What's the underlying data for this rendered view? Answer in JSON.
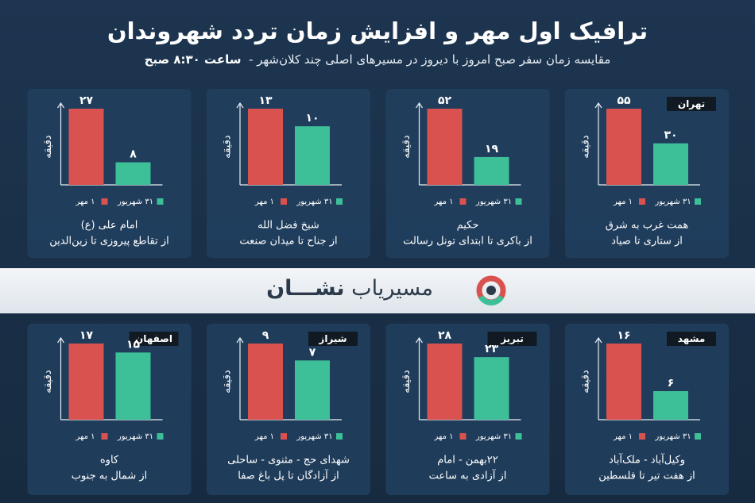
{
  "title": "ترافیک اول مهر و افزایش زمان تردد شهروندان",
  "subtitle": "مقایسه زمان سفر صبح امروز با دیروز در مسیرهای اصلی چند کلان‌شهر",
  "time": "ساعت ۸:۳۰ صبح",
  "brand": {
    "prefix": "مسیریاب",
    "name": "نشـــان"
  },
  "chart_data": [
    {
      "type": "bar",
      "city": "تهران",
      "route": "همت غرب به شرق",
      "route_from": "از ستاری تا صیاد",
      "ylabel": "دقیقه",
      "categories": [
        "۱ مهر",
        "۳۱ شهریور"
      ],
      "values": [
        55,
        30
      ],
      "value_labels": [
        "۵۵",
        "۳۰"
      ],
      "colors": [
        "#d9524f",
        "#3dbf98"
      ],
      "ylim": [
        0,
        55
      ]
    },
    {
      "type": "bar",
      "route": "حکیم",
      "route_from": "از باکری تا ابتدای تونل رسالت",
      "ylabel": "دقیقه",
      "categories": [
        "۱ مهر",
        "۳۱ شهریور"
      ],
      "values": [
        52,
        19
      ],
      "value_labels": [
        "۵۲",
        "۱۹"
      ],
      "colors": [
        "#d9524f",
        "#3dbf98"
      ],
      "ylim": [
        0,
        52
      ]
    },
    {
      "type": "bar",
      "route": "شیخ فضل الله",
      "route_from": "از جناح تا میدان صنعت",
      "ylabel": "دقیقه",
      "categories": [
        "۱ مهر",
        "۳۱ شهریور"
      ],
      "values": [
        13,
        10
      ],
      "value_labels": [
        "۱۳",
        "۱۰"
      ],
      "colors": [
        "#d9524f",
        "#3dbf98"
      ],
      "ylim": [
        0,
        13
      ]
    },
    {
      "type": "bar",
      "route": "امام علی (ع)",
      "route_from": "از تقاطع پیروزی تا زین‌الدین",
      "ylabel": "دقیقه",
      "categories": [
        "۱ مهر",
        "۳۱ شهریور"
      ],
      "values": [
        27,
        8
      ],
      "value_labels": [
        "۲۷",
        "۸"
      ],
      "colors": [
        "#d9524f",
        "#3dbf98"
      ],
      "ylim": [
        0,
        27
      ]
    },
    {
      "type": "bar",
      "city": "مشهد",
      "route": "وکیل‌آباد - ملک‌آباد",
      "route_from": "از هفت تیر تا فلسطین",
      "ylabel": "دقیقه",
      "categories": [
        "۱ مهر",
        "۳۱ شهریور"
      ],
      "values": [
        16,
        6
      ],
      "value_labels": [
        "۱۶",
        "۶"
      ],
      "colors": [
        "#d9524f",
        "#3dbf98"
      ],
      "ylim": [
        0,
        16
      ]
    },
    {
      "type": "bar",
      "city": "تبریز",
      "route": "۲۲بهمن - امام",
      "route_from": "از آزادی به ساعت",
      "ylabel": "دقیقه",
      "categories": [
        "۱ مهر",
        "۳۱ شهریور"
      ],
      "values": [
        28,
        23
      ],
      "value_labels": [
        "۲۸",
        "۲۳"
      ],
      "colors": [
        "#d9524f",
        "#3dbf98"
      ],
      "ylim": [
        0,
        28
      ]
    },
    {
      "type": "bar",
      "city": "شیراز",
      "route": "شهدای حج - مثنوی - ساحلی",
      "route_from": "از آزادگان تا پل باغ صفا",
      "ylabel": "دقیقه",
      "categories": [
        "۱ مهر",
        "۳۱ شهریور"
      ],
      "values": [
        9,
        7
      ],
      "value_labels": [
        "۹",
        "۷"
      ],
      "colors": [
        "#d9524f",
        "#3dbf98"
      ],
      "ylim": [
        0,
        9
      ]
    },
    {
      "type": "bar",
      "city": "اصفهان",
      "route": "کاوه",
      "route_from": "از شمال به جنوب",
      "ylabel": "دقیقه",
      "categories": [
        "۱ مهر",
        "۳۱ شهریور"
      ],
      "values": [
        17,
        15
      ],
      "value_labels": [
        "۱۷",
        "۱۵"
      ],
      "colors": [
        "#d9524f",
        "#3dbf98"
      ],
      "ylim": [
        0,
        17
      ]
    }
  ]
}
